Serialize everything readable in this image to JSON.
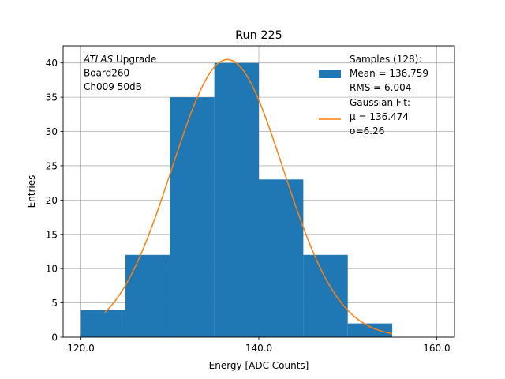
{
  "chart_data": {
    "type": "bar",
    "title": "Run 225",
    "xlabel": "Energy [ADC Counts]",
    "ylabel": "Entries",
    "xlim": [
      118.0,
      162.0
    ],
    "ylim": [
      0,
      42.5
    ],
    "xticks": [
      120.0,
      140.0,
      160.0
    ],
    "xtick_labels": [
      "120.0",
      "140.0",
      "160.0"
    ],
    "yticks": [
      0,
      5,
      10,
      15,
      20,
      25,
      30,
      35,
      40
    ],
    "ytick_labels": [
      "0",
      "5",
      "10",
      "15",
      "20",
      "25",
      "30",
      "35",
      "40"
    ],
    "grid": true,
    "bin_edges": [
      120,
      125,
      130,
      135,
      140,
      145,
      150,
      155,
      160
    ],
    "values": [
      4,
      12,
      35,
      40,
      23,
      12,
      2,
      0
    ],
    "histogram_color": "#1f77b4",
    "fit": {
      "type": "gaussian",
      "mu": 136.474,
      "sigma": 6.26,
      "amplitude": 40.5,
      "x_range": [
        122.7,
        155.0
      ],
      "color": "#ff7f0e"
    },
    "annotation_lines": [
      {
        "italic": "ATLAS",
        "text": " Upgrade"
      },
      {
        "italic": "",
        "text": " Board260"
      },
      {
        "italic": "",
        "text": " Ch009 50dB"
      }
    ],
    "legend": {
      "placement": "top-right",
      "entries": [
        {
          "kind": "patch",
          "lines": [
            "Samples (128):",
            " Mean = 136.759",
            " RMS = 6.004"
          ]
        },
        {
          "kind": "line",
          "lines": [
            "Gaussian Fit:",
            " μ = 136.474",
            " σ=6.26"
          ]
        }
      ]
    }
  }
}
